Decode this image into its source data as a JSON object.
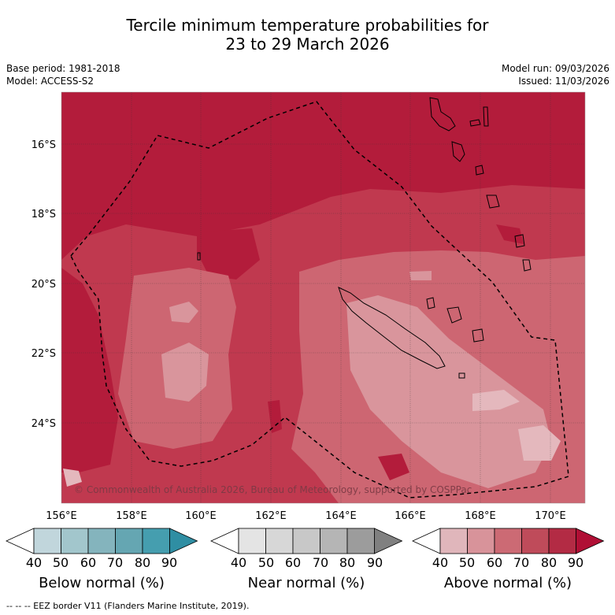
{
  "header": {
    "title_line1": "Tercile minimum temperature probabilities for",
    "title_line2": "23 to 29 March 2026",
    "base_period": "Base period: 1981-2018",
    "model": "Model: ACCESS-S2",
    "model_run": "Model run: 09/03/2026",
    "issued": "Issued: 11/03/2026"
  },
  "map": {
    "lat_labels": [
      "16°S",
      "18°S",
      "20°S",
      "22°S",
      "24°S"
    ],
    "lon_labels": [
      "156°E",
      "158°E",
      "160°E",
      "162°E",
      "164°E",
      "166°E",
      "168°E",
      "170°E"
    ],
    "copyright": "© Commonwealth of Australia 2026, Bureau of Meteorology, supported by COSPPac",
    "colors": {
      "above_80_90": "#b31c3b",
      "above_70_80": "#c0394f",
      "above_60_70": "#cd6672",
      "above_50_60": "#d9959c",
      "above_40_50": "#e4b8bd"
    }
  },
  "legends": [
    {
      "label": "Below normal (%)",
      "ticks": [
        "40",
        "50",
        "60",
        "70",
        "80",
        "90"
      ],
      "colors": [
        "#ffffff",
        "#c1d6dc",
        "#a2c6cc",
        "#84b4bd",
        "#65a6b2",
        "#459eaf",
        "#2f8ea3"
      ]
    },
    {
      "label": "Near normal (%)",
      "ticks": [
        "40",
        "50",
        "60",
        "70",
        "80",
        "90"
      ],
      "colors": [
        "#ffffff",
        "#e4e4e4",
        "#d7d7d7",
        "#c8c8c8",
        "#b5b5b5",
        "#9c9c9c",
        "#808080"
      ]
    },
    {
      "label": "Above normal (%)",
      "ticks": [
        "40",
        "50",
        "60",
        "70",
        "80",
        "90"
      ],
      "colors": [
        "#ffffff",
        "#e0b6bb",
        "#d8939a",
        "#cc6a74",
        "#bf4b5a",
        "#b32b44",
        "#b00f35"
      ]
    }
  ],
  "footer": "--  --  -- EEZ border V11 (Flanders Marine Institute, 2019)."
}
